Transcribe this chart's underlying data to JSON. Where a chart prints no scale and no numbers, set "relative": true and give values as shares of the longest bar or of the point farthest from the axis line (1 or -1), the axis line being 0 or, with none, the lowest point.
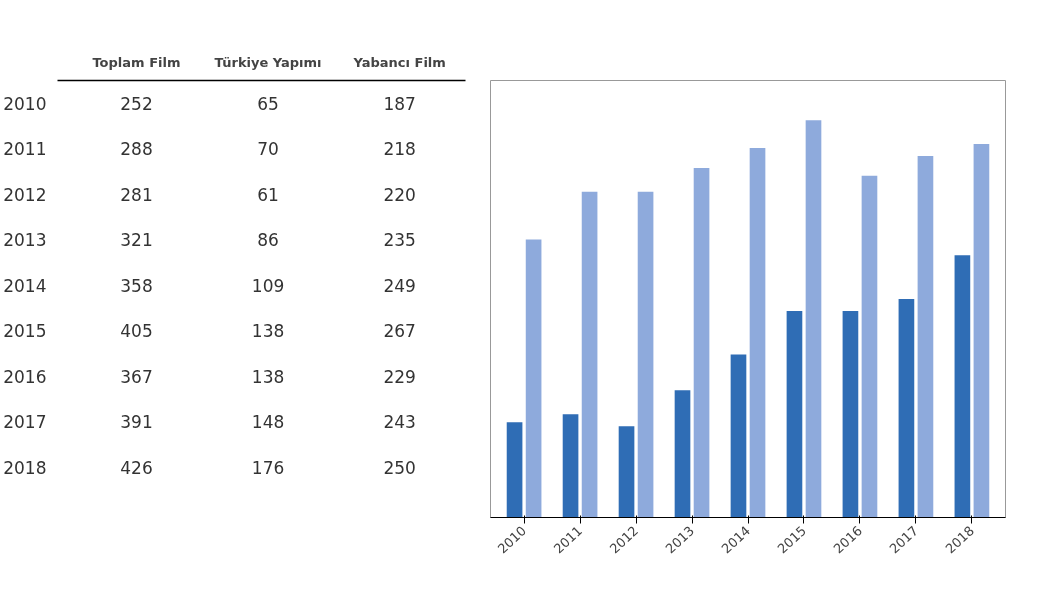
{
  "chart_data": [
    {
      "type": "heatmap",
      "categories": [
        "Toplam Film",
        "Türkiye Yapımı",
        "Yabancı Film"
      ],
      "y_categories": [
        "2010",
        "2011",
        "2012",
        "2013",
        "2014",
        "2015",
        "2016",
        "2017",
        "2018"
      ],
      "cells": [
        [
          252,
          65,
          187
        ],
        [
          288,
          70,
          218
        ],
        [
          281,
          61,
          220
        ],
        [
          321,
          86,
          235
        ],
        [
          358,
          109,
          249
        ],
        [
          405,
          138,
          267
        ],
        [
          367,
          138,
          229
        ],
        [
          391,
          148,
          243
        ],
        [
          426,
          176,
          250
        ]
      ],
      "data_labels": true
    },
    {
      "type": "bar",
      "categories": [
        "2010",
        "2011",
        "2012",
        "2013",
        "2014",
        "2015",
        "2016",
        "2017",
        "2018"
      ],
      "relative": true,
      "series": [
        {
          "color": "#2f6db5",
          "values": [
            0.24,
            0.26,
            0.23,
            0.32,
            0.41,
            0.52,
            0.52,
            0.55,
            0.66
          ]
        },
        {
          "color": "#8eaadc",
          "values": [
            0.7,
            0.82,
            0.82,
            0.88,
            0.93,
            1.0,
            0.86,
            0.91,
            0.94
          ]
        }
      ],
      "grid": false,
      "tick_labels": "x"
    }
  ]
}
